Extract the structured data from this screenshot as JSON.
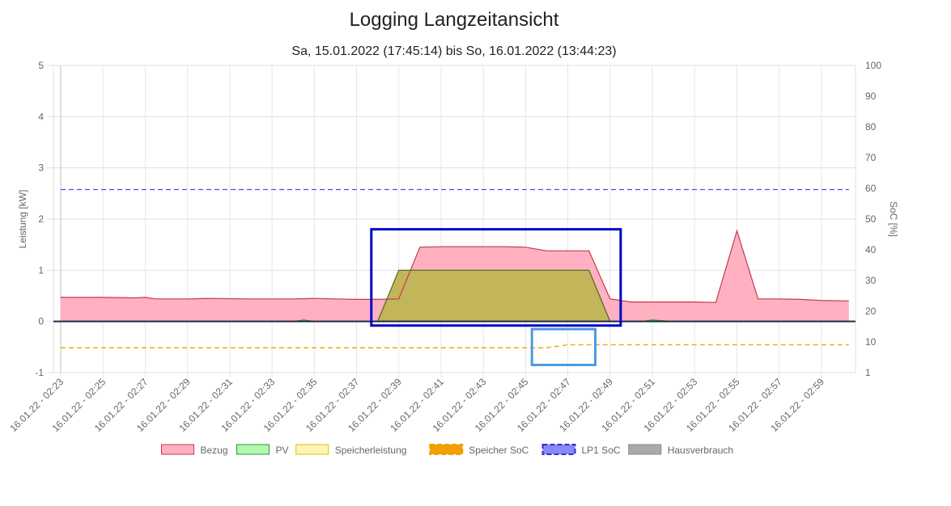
{
  "chart_data": {
    "type": "line",
    "title": "Logging Langzeitansicht",
    "subtitle": "Sa, 15.01.2022 (17:45:14) bis So, 16.01.2022 (13:44:23)",
    "ylabel": "Leistung [kW]",
    "y2label": "SoC [%]",
    "ylim": [
      -1,
      5
    ],
    "y2lim": [
      1,
      100
    ],
    "yticks": [
      "5",
      "4",
      "3",
      "2",
      "1",
      "0",
      "-1"
    ],
    "y2ticks": [
      "100",
      "90",
      "80",
      "70",
      "60",
      "50",
      "40",
      "30",
      "20",
      "10",
      "1"
    ],
    "xlim": [
      0,
      37.3
    ],
    "xtick_labels": [
      "16.01.22 - 02:23",
      "16.01.22 - 02:25",
      "16.01.22 - 02:27",
      "16.01.22 - 02:29",
      "16.01.22 - 02:31",
      "16.01.22 - 02:33",
      "16.01.22 - 02:35",
      "16.01.22 - 02:37",
      "16.01.22 - 02:39",
      "16.01.22 - 02:41",
      "16.01.22 - 02:43",
      "16.01.22 - 02:45",
      "16.01.22 - 02:47",
      "16.01.22 - 02:49",
      "16.01.22 - 02:51",
      "16.01.22 - 02:53",
      "16.01.22 - 02:55",
      "16.01.22 - 02:57",
      "16.01.22 - 02:59"
    ],
    "grid": true,
    "legend_position": "bottom",
    "series": [
      {
        "name": "Bezug",
        "axis": "left",
        "fill": true,
        "color": "#ffb1c1",
        "border": "#c23b50",
        "points": [
          [
            0,
            0.47
          ],
          [
            2,
            0.47
          ],
          [
            3.5,
            0.46
          ],
          [
            4,
            0.47
          ],
          [
            4.5,
            0.44
          ],
          [
            6,
            0.44
          ],
          [
            7,
            0.45
          ],
          [
            9,
            0.44
          ],
          [
            10,
            0.44
          ],
          [
            11,
            0.44
          ],
          [
            12,
            0.45
          ],
          [
            13,
            0.44
          ],
          [
            14,
            0.43
          ],
          [
            15,
            0.43
          ],
          [
            16,
            0.44
          ],
          [
            17,
            1.45
          ],
          [
            18,
            1.46
          ],
          [
            19,
            1.46
          ],
          [
            20,
            1.46
          ],
          [
            21,
            1.46
          ],
          [
            22,
            1.45
          ],
          [
            23,
            1.38
          ],
          [
            24,
            1.38
          ],
          [
            25,
            1.38
          ],
          [
            26,
            0.44
          ],
          [
            27,
            0.38
          ],
          [
            28,
            0.38
          ],
          [
            29,
            0.38
          ],
          [
            30,
            0.38
          ],
          [
            31,
            0.37
          ],
          [
            32,
            1.77
          ],
          [
            33,
            0.44
          ],
          [
            34,
            0.44
          ],
          [
            35,
            0.43
          ],
          [
            36,
            0.41
          ],
          [
            37.3,
            0.4
          ]
        ]
      },
      {
        "name": "PV",
        "axis": "left",
        "fill": true,
        "color": "#b3f7b3",
        "border": "#2a9a2a",
        "points": [
          [
            0,
            0
          ],
          [
            11,
            0
          ],
          [
            11.5,
            0.03
          ],
          [
            12,
            0
          ],
          [
            27,
            0
          ],
          [
            27.5,
            0
          ],
          [
            28,
            0.03
          ],
          [
            29,
            0
          ],
          [
            37.3,
            0
          ]
        ]
      },
      {
        "name": "Speicherleistung",
        "axis": "left",
        "fill": true,
        "color": "#fff5b0",
        "border": "#d4c020",
        "points": [
          [
            0,
            0
          ],
          [
            37.3,
            0
          ]
        ]
      },
      {
        "name": "Speicher SoC",
        "axis": "right",
        "fill": false,
        "dashed": true,
        "color": "#f0a000",
        "points": [
          [
            0,
            9
          ],
          [
            23,
            9
          ],
          [
            24,
            10
          ],
          [
            25,
            10
          ],
          [
            37.3,
            10
          ]
        ]
      },
      {
        "name": "LP1 SoC",
        "axis": "right",
        "fill": false,
        "dashed": true,
        "color": "#5050f0",
        "points": [
          [
            0,
            60
          ],
          [
            37.3,
            60
          ]
        ]
      },
      {
        "name": "Hausverbrauch",
        "axis": "left",
        "fill": true,
        "color": "#aaaaaa",
        "border": "#888888",
        "points": [
          [
            0,
            0
          ],
          [
            37.3,
            0
          ]
        ]
      },
      {
        "name": "",
        "axis": "left",
        "fill": true,
        "color": "#c2b55a",
        "border": "#4a6a18",
        "points": [
          [
            15,
            0
          ],
          [
            16,
            1
          ],
          [
            25,
            1
          ],
          [
            26,
            0
          ]
        ]
      }
    ],
    "annotations": [
      {
        "kind": "box",
        "color": "#0000cc",
        "x0": 14.7,
        "x1": 26.5,
        "y0": -0.08,
        "y1": 1.8
      },
      {
        "kind": "box",
        "color": "#4c9be0",
        "x0": 22.3,
        "x1": 25.3,
        "y0": -0.85,
        "y1": -0.15
      }
    ]
  }
}
